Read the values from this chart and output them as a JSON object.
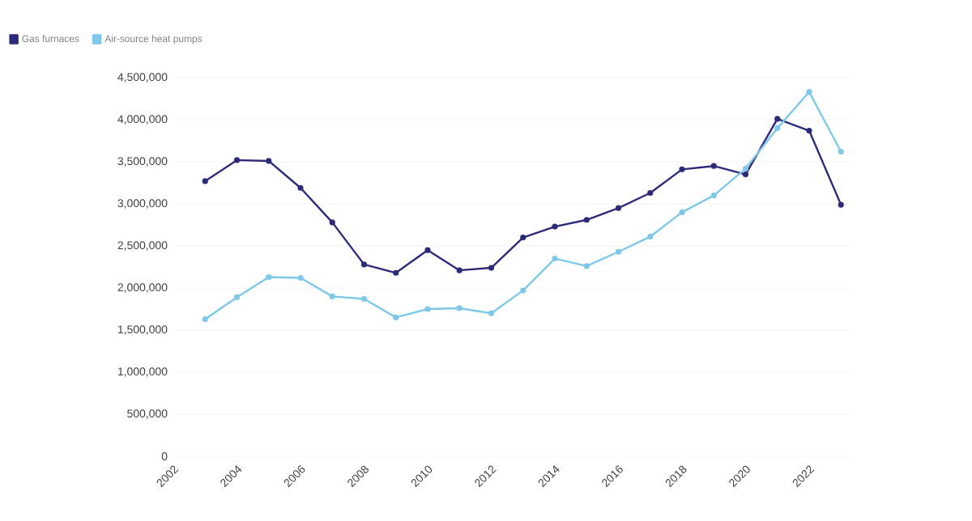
{
  "chart_data": {
    "type": "line",
    "x": [
      2003,
      2004,
      2005,
      2006,
      2007,
      2008,
      2009,
      2010,
      2011,
      2012,
      2013,
      2014,
      2015,
      2016,
      2017,
      2018,
      2019,
      2020,
      2021,
      2022,
      2023
    ],
    "series": [
      {
        "name": "Gas furnaces",
        "color": "#2e2a7a",
        "values": [
          3270000,
          3520000,
          3510000,
          3190000,
          2780000,
          2280000,
          2180000,
          2450000,
          2210000,
          2240000,
          2600000,
          2730000,
          2810000,
          2950000,
          3130000,
          3410000,
          3450000,
          3350000,
          4010000,
          3870000,
          2990000
        ]
      },
      {
        "name": "Air-source heat pumps",
        "color": "#7ec8ea",
        "values": [
          1630000,
          1890000,
          2130000,
          2120000,
          1900000,
          1870000,
          1650000,
          1750000,
          1760000,
          1700000,
          1970000,
          2350000,
          2260000,
          2430000,
          2610000,
          2900000,
          3100000,
          3420000,
          3900000,
          4330000,
          3620000
        ]
      }
    ],
    "xlim": [
      2002,
      2023.3
    ],
    "xticks": [
      2002,
      2004,
      2006,
      2008,
      2010,
      2012,
      2014,
      2016,
      2018,
      2020,
      2022
    ],
    "ylim": [
      0,
      4500000
    ],
    "yticks": [
      {
        "value": 0,
        "label": "0"
      },
      {
        "value": 500000,
        "label": "500,000"
      },
      {
        "value": 1000000,
        "label": "1,000,000"
      },
      {
        "value": 1500000,
        "label": "1,500,000"
      },
      {
        "value": 2000000,
        "label": "2,000,000"
      },
      {
        "value": 2500000,
        "label": "2,500,000"
      },
      {
        "value": 3000000,
        "label": "3,000,000"
      },
      {
        "value": 3500000,
        "label": "3,500,000"
      },
      {
        "value": 4000000,
        "label": "4,000,000"
      },
      {
        "value": 4500000,
        "label": "4,500,000"
      }
    ],
    "grid": "y",
    "legend": "top left",
    "marker": "circle",
    "line_style": "solid"
  }
}
